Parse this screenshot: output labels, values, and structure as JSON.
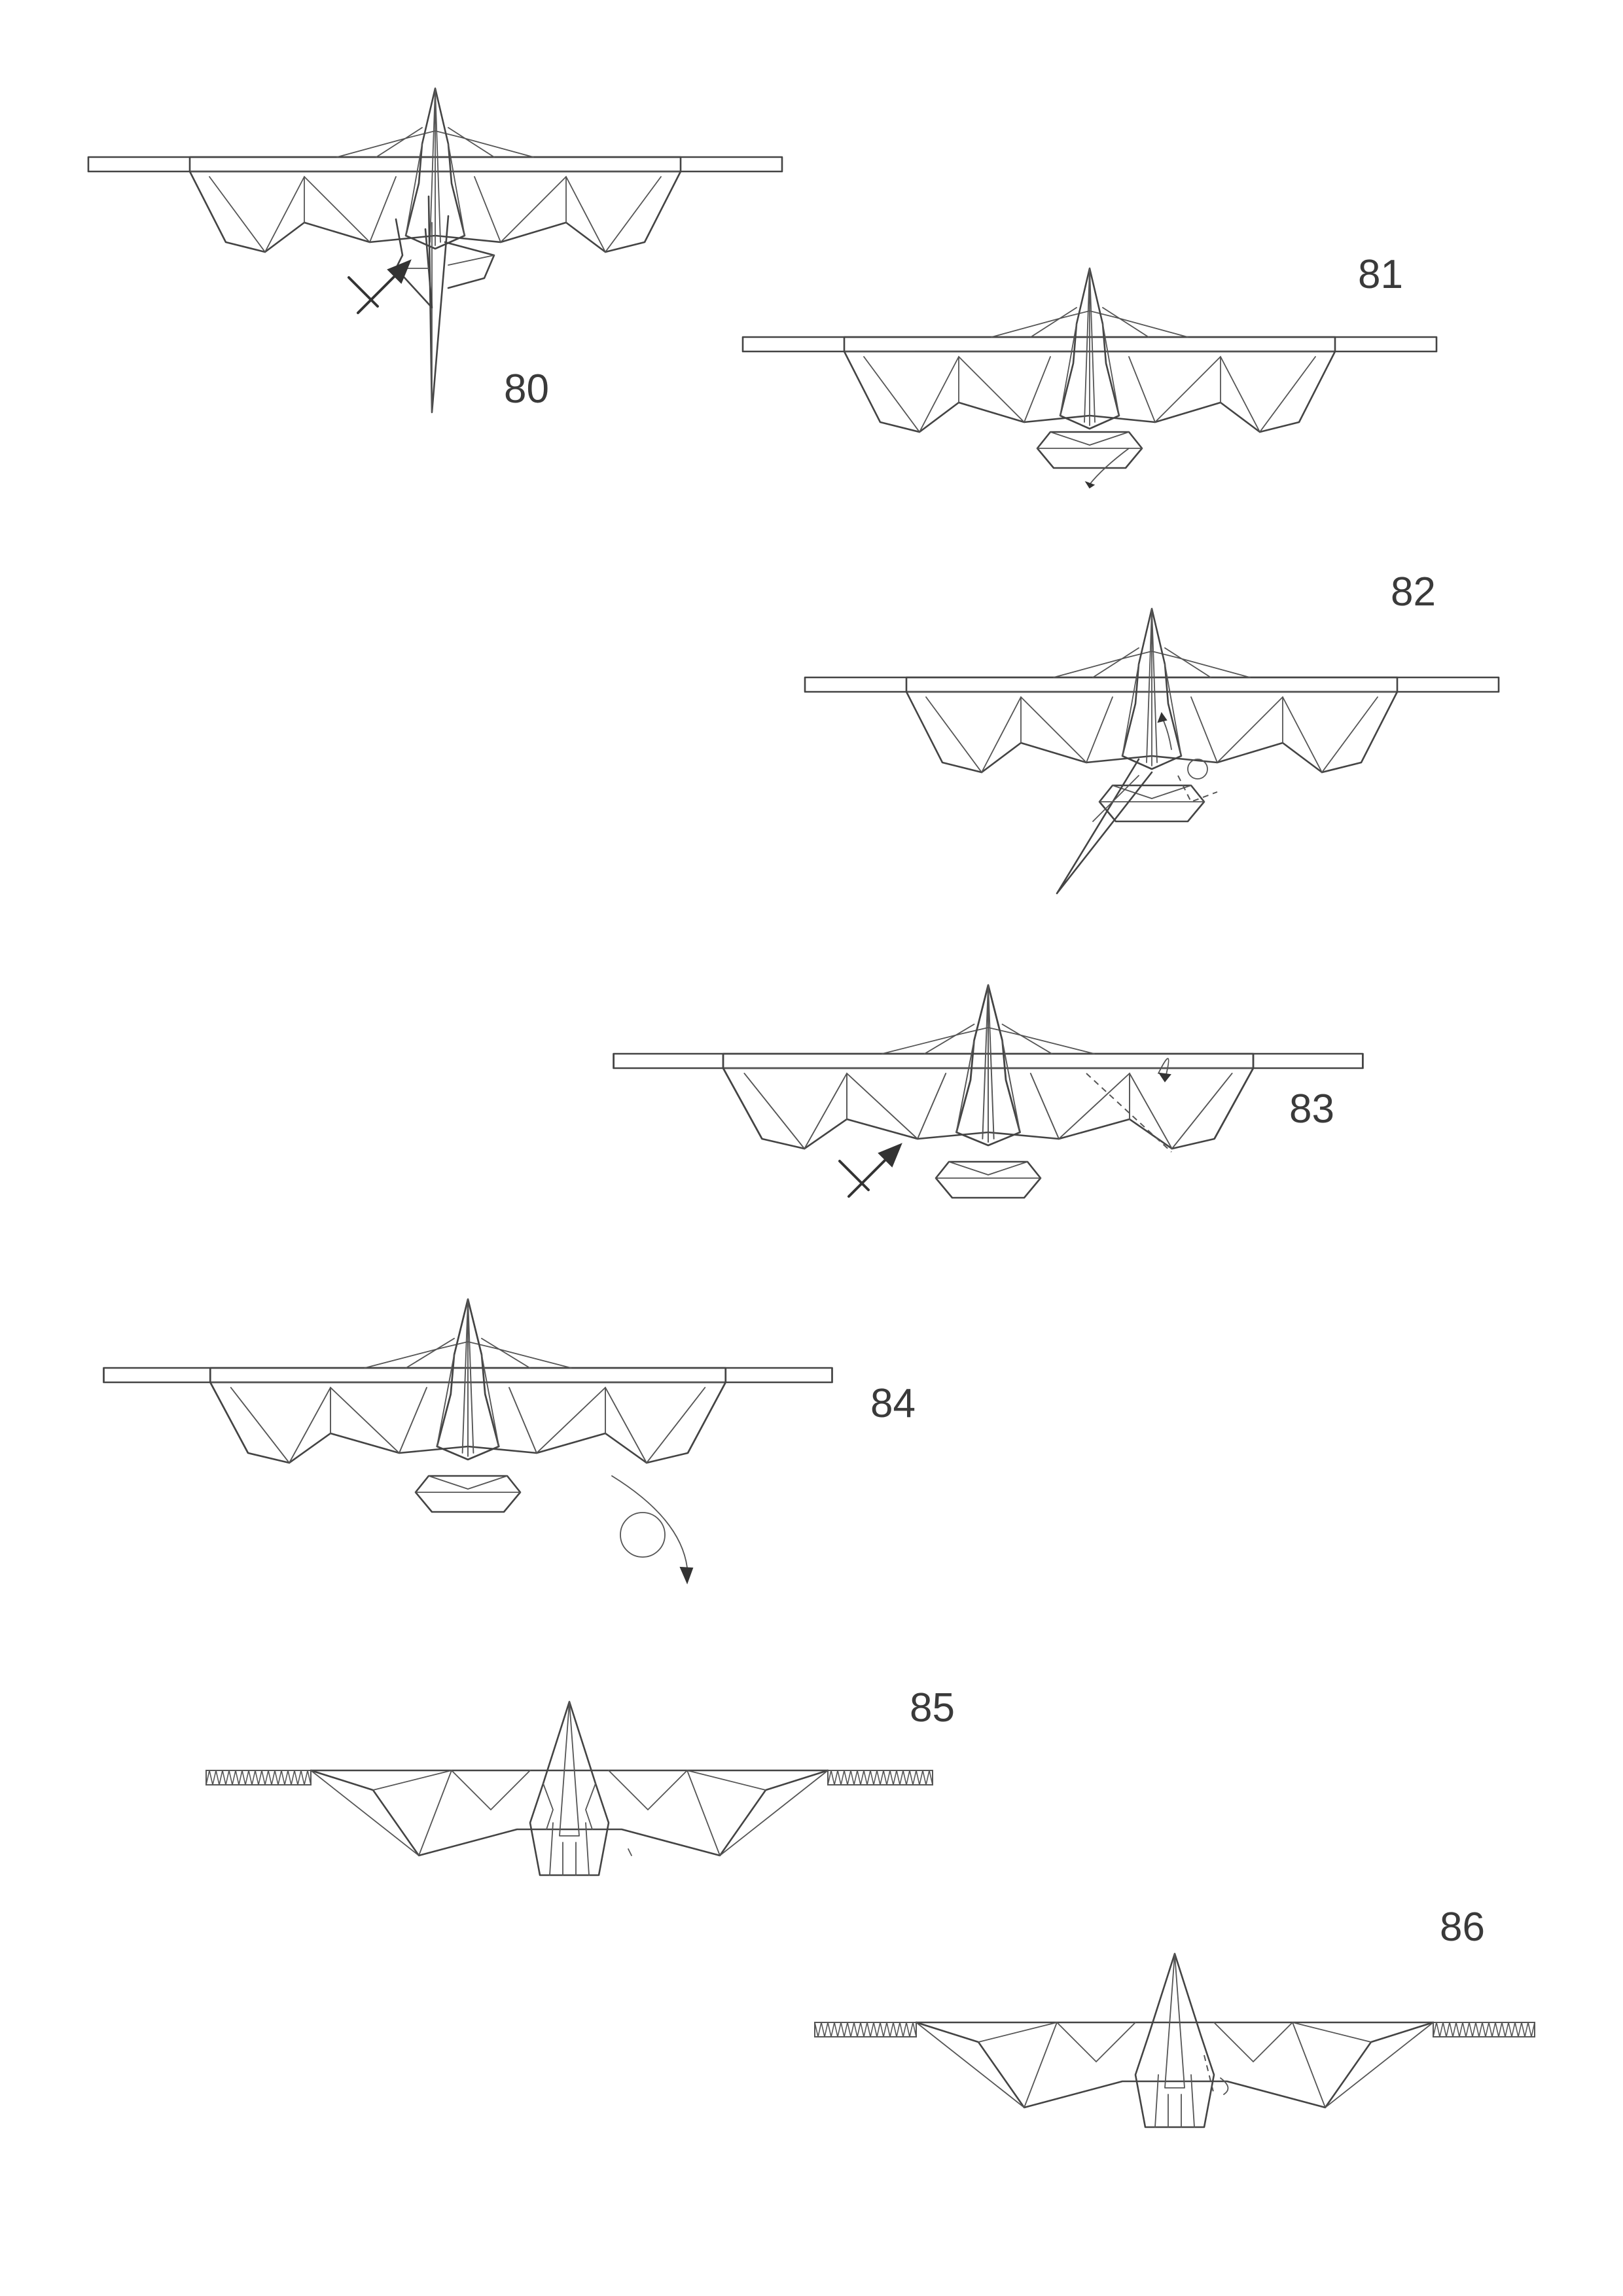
{
  "steps": [
    {
      "id": "80",
      "label": "80"
    },
    {
      "id": "81",
      "label": "81"
    },
    {
      "id": "82",
      "label": "82"
    },
    {
      "id": "83",
      "label": "83"
    },
    {
      "id": "84",
      "label": "84"
    },
    {
      "id": "85",
      "label": "85"
    },
    {
      "id": "86",
      "label": "86"
    }
  ],
  "symbols": {
    "push_arrow": "push-in-arrow",
    "turn_over": "turn-over-symbol"
  }
}
